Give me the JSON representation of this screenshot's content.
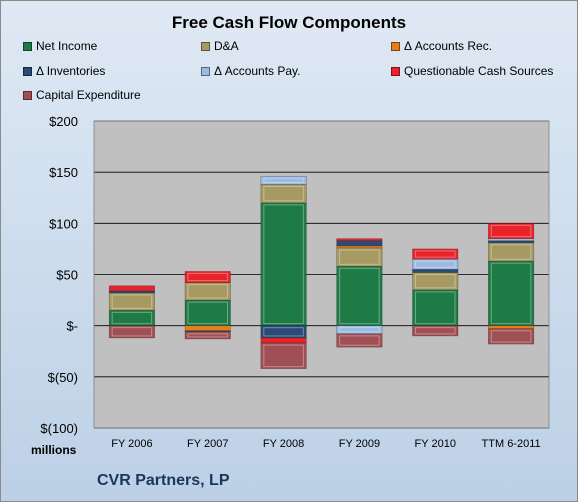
{
  "chart_data": {
    "type": "bar",
    "stacked": true,
    "title": "Free Cash Flow Components",
    "categories": [
      "FY 2006",
      "FY 2007",
      "FY 2008",
      "FY 2009",
      "FY 2010",
      "TTM 6-2011"
    ],
    "y_tick_labels": [
      "$200",
      "$150",
      "$100",
      "$50",
      "$-",
      "$(50)",
      "$(100)"
    ],
    "ylim": [
      -100,
      200
    ],
    "units_label": "millions",
    "grid": true,
    "legend_position": "top",
    "series": [
      {
        "name": "Net Income",
        "color": "#1e7b45",
        "values": [
          15,
          25,
          120,
          58,
          35,
          63
        ]
      },
      {
        "name": "D&A",
        "color": "#a69a62",
        "values": [
          17,
          17,
          18,
          18,
          17,
          18
        ]
      },
      {
        "name": "Δ Accounts Rec.",
        "color": "#e37d1e",
        "values": [
          0,
          -5,
          0,
          2,
          0,
          -3
        ]
      },
      {
        "name": "Δ Inventories",
        "color": "#2b4a78",
        "values": [
          2,
          -1,
          -12,
          5,
          3,
          2
        ]
      },
      {
        "name": "Δ Accounts Pay.",
        "color": "#9bbbe1",
        "values": [
          0,
          0,
          8,
          -8,
          10,
          2
        ]
      },
      {
        "name": "Questionable Cash Sources",
        "color": "#e8242b",
        "values": [
          5,
          11,
          -5,
          2,
          10,
          15
        ]
      },
      {
        "name": "Capital Expenditure",
        "color": "#a04f54",
        "values": [
          -12,
          -7,
          -25,
          -13,
          -10,
          -15
        ]
      }
    ]
  },
  "footer": {
    "company": "CVR Partners, LP"
  }
}
